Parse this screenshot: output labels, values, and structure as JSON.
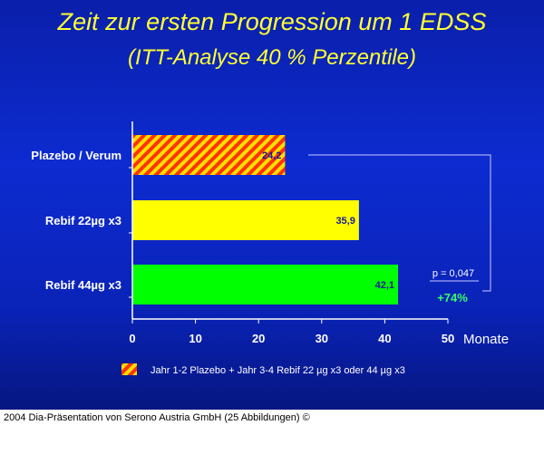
{
  "slide": {
    "title_line1": "Zeit zur ersten Progression um 1 EDSS",
    "title_line2": "(ITT-Analyse 40 % Perzentile)"
  },
  "chart_data": {
    "type": "bar",
    "orientation": "horizontal",
    "categories": [
      "Plazebo / Verum",
      "Rebif 22µg x3",
      "Rebif 44µg x3"
    ],
    "values": [
      24.2,
      35.9,
      42.1
    ],
    "value_labels": [
      "24,2",
      "35,9",
      "42,1"
    ],
    "bar_colors": [
      "#ff6a00",
      "#ffff00",
      "#00ff00"
    ],
    "bar_patterns": [
      "hatched-red-yellow",
      "solid",
      "solid"
    ],
    "xlabel": "Monate",
    "xlim": [
      0,
      50
    ],
    "xticks": [
      0,
      10,
      20,
      30,
      40,
      50
    ],
    "grid": false,
    "legend": "bottom",
    "legend_entries": [
      "Jahr 1-2 Plazebo + Jahr 3-4 Rebif 22 µg x3 oder 44 µg x3"
    ],
    "annotations": {
      "p_value": "p = 0,047",
      "increase": "+74%",
      "bracket": "Plazebo / Verum vs Rebif 44µg x3"
    }
  },
  "colors": {
    "background": "#0d2bd0",
    "title": "#ffff33",
    "increase_text": "#33ff66"
  },
  "footer": {
    "caption": "2004 Dia-Präsentation von Serono Austria GmbH (25 Abbildungen) ©"
  }
}
